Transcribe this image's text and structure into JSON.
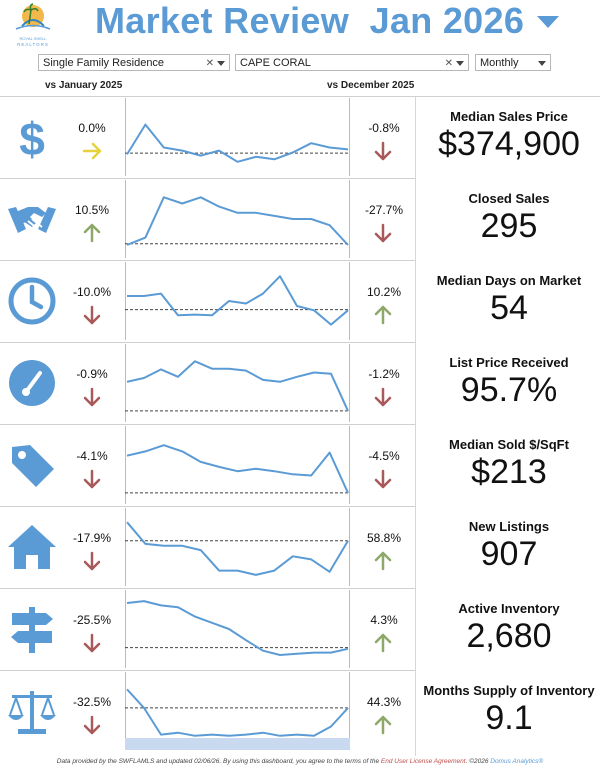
{
  "header": {
    "title": "Market Review  Jan 2026",
    "logo_text": "REALTORS",
    "accent_color": "#5b9bd5"
  },
  "filters": {
    "property_type": "Single Family Residence",
    "city": "CAPE CORAL",
    "period": "Monthly"
  },
  "columns": {
    "left": "vs January 2025",
    "right": "vs December 2025"
  },
  "metrics": [
    {
      "icon": "dollar-sign-icon",
      "yoy": "0.0%",
      "yoy_dir": "flat",
      "mom": "-0.8%",
      "mom_dir": "down",
      "title": "Median Sales Price",
      "value": "$374,900",
      "series": [
        0.22,
        0.7,
        0.33,
        0.28,
        0.2,
        0.28,
        0.1,
        0.18,
        0.14,
        0.25,
        0.4,
        0.33,
        0.3
      ],
      "ref": 0.24
    },
    {
      "icon": "handshake-icon",
      "yoy": "10.5%",
      "yoy_dir": "up",
      "mom": "-27.7%",
      "mom_dir": "down",
      "title": "Closed Sales",
      "value": "295",
      "series": [
        0.08,
        0.2,
        0.85,
        0.75,
        0.85,
        0.7,
        0.6,
        0.6,
        0.55,
        0.5,
        0.5,
        0.4,
        0.08
      ],
      "ref": 0.1
    },
    {
      "icon": "clock-icon",
      "yoy": "-10.0%",
      "yoy_dir": "down",
      "mom": "10.2%",
      "mom_dir": "up",
      "title": "Median Days on Market",
      "value": "54",
      "series": [
        0.58,
        0.58,
        0.62,
        0.27,
        0.28,
        0.27,
        0.5,
        0.46,
        0.62,
        0.9,
        0.42,
        0.35,
        0.12,
        0.35
      ],
      "ref": 0.36
    },
    {
      "icon": "gauge-icon",
      "yoy": "-0.9%",
      "yoy_dir": "down",
      "mom": "-1.2%",
      "mom_dir": "down",
      "title": "List Price Received",
      "value": "95.7%",
      "series": [
        0.52,
        0.58,
        0.72,
        0.6,
        0.85,
        0.73,
        0.73,
        0.7,
        0.55,
        0.52,
        0.6,
        0.67,
        0.65,
        0.05
      ],
      "ref": 0.05
    },
    {
      "icon": "price-tag-icon",
      "yoy": "-4.1%",
      "yoy_dir": "down",
      "mom": "-4.5%",
      "mom_dir": "down",
      "title": "Median Sold $/SqFt",
      "value": "$213",
      "series": [
        0.65,
        0.72,
        0.82,
        0.72,
        0.55,
        0.47,
        0.4,
        0.44,
        0.4,
        0.35,
        0.33,
        0.7,
        0.05
      ],
      "ref": 0.05
    },
    {
      "icon": "house-icon",
      "yoy": "-17.9%",
      "yoy_dir": "down",
      "mom": "58.8%",
      "mom_dir": "up",
      "title": "New Listings",
      "value": "907",
      "series": [
        0.9,
        0.55,
        0.52,
        0.52,
        0.45,
        0.12,
        0.12,
        0.05,
        0.12,
        0.35,
        0.3,
        0.1,
        0.6
      ],
      "ref": 0.6
    },
    {
      "icon": "signpost-icon",
      "yoy": "-25.5%",
      "yoy_dir": "down",
      "mom": "4.3%",
      "mom_dir": "up",
      "title": "Active Inventory",
      "value": "2,680",
      "series": [
        0.92,
        0.95,
        0.88,
        0.85,
        0.7,
        0.6,
        0.5,
        0.32,
        0.15,
        0.08,
        0.1,
        0.12,
        0.12,
        0.18
      ],
      "ref": 0.2
    },
    {
      "icon": "scale-icon",
      "yoy": "-32.5%",
      "yoy_dir": "down",
      "mom": "44.3%",
      "mom_dir": "up",
      "title": "Months Supply of Inventory",
      "value": "9.1",
      "series": [
        0.85,
        0.55,
        0.12,
        0.15,
        0.1,
        0.12,
        0.1,
        0.12,
        0.15,
        0.1,
        0.12,
        0.1,
        0.25,
        0.55
      ],
      "ref": 0.55
    }
  ],
  "footer": {
    "text1": "Data provided by the SWFLAMLS and updated 02/06/26.  By using this dashboard, you agree to the terms of the ",
    "link": "End User License Agreement",
    "text2": ".  ©2026 ",
    "brand": "Domus Analytics®"
  },
  "colors": {
    "up": "#8ea86a",
    "down": "#a85a5a",
    "flat": "#e6d23c",
    "line": "#5b9bd5",
    "ref": "#444444",
    "icon": "#5b9bd5"
  }
}
